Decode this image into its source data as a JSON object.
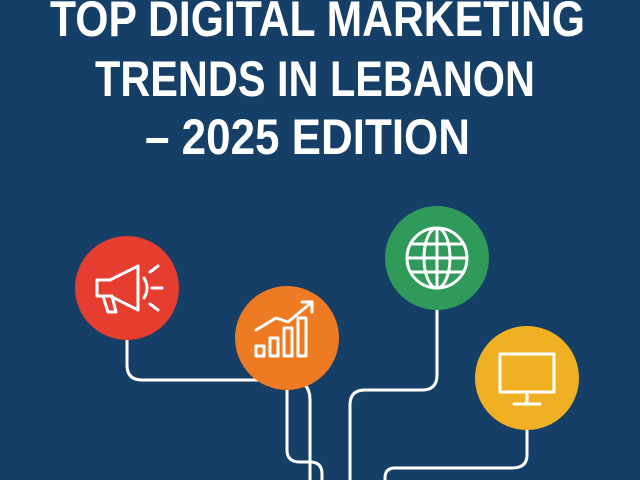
{
  "title": {
    "lines": [
      "TOP DIGITAL MARKETING",
      "TRENDS IN LEBANON",
      "– 2025 EDITION"
    ]
  }
}
